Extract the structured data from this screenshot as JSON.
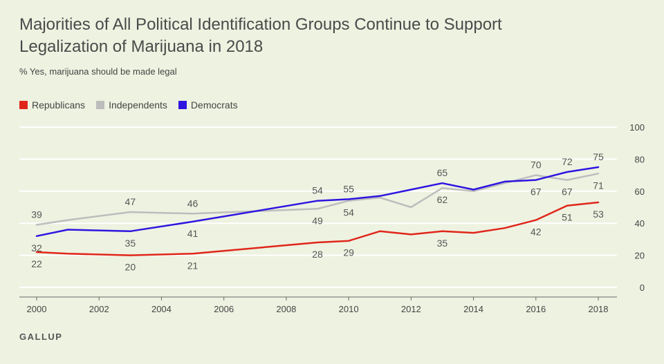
{
  "header": {
    "title": "Majorities of All Political Identification Groups Continue to Support Legalization of Marijuana in 2018",
    "subtitle": "% Yes, marijuana should be made legal"
  },
  "footer": {
    "brand": "GALLUP"
  },
  "colors": {
    "Republicans": "#e0261a",
    "Independents": "#bdbdbd",
    "Democrats": "#2e15e0"
  },
  "chart_data": {
    "type": "line",
    "title": "Majorities of All Political Identification Groups Continue to Support Legalization of Marijuana in 2018",
    "subtitle": "% Yes, marijuana should be made legal",
    "xlabel": "",
    "ylabel": "",
    "xlim": [
      2000,
      2018
    ],
    "ylim": [
      0,
      100
    ],
    "x_ticks": [
      2000,
      2002,
      2004,
      2006,
      2008,
      2010,
      2012,
      2014,
      2016,
      2018
    ],
    "y_ticks": [
      0,
      20,
      40,
      60,
      80,
      100
    ],
    "grid": true,
    "legend": "top-left",
    "x": [
      2000,
      2001,
      2003,
      2005,
      2009,
      2010,
      2011,
      2012,
      2013,
      2014,
      2015,
      2016,
      2017,
      2018
    ],
    "series": [
      {
        "name": "Republicans",
        "values": [
          22,
          21,
          20,
          21,
          28,
          29,
          35,
          33,
          35,
          34,
          37,
          42,
          51,
          53
        ]
      },
      {
        "name": "Independents",
        "values": [
          39,
          42,
          47,
          46,
          49,
          54,
          56,
          50,
          62,
          60,
          65,
          70,
          67,
          71
        ]
      },
      {
        "name": "Democrats",
        "values": [
          32,
          36,
          35,
          41,
          54,
          55,
          57,
          61,
          65,
          61,
          66,
          67,
          72,
          75
        ]
      }
    ],
    "data_labels": [
      {
        "x": 2000,
        "value": 39,
        "text": "39",
        "pos": "above"
      },
      {
        "x": 2000,
        "value": 32,
        "text": "32",
        "pos": "below"
      },
      {
        "x": 2000,
        "value": 22,
        "text": "22",
        "pos": "below"
      },
      {
        "x": 2003,
        "value": 47,
        "text": "47",
        "pos": "above"
      },
      {
        "x": 2003,
        "value": 35,
        "text": "35",
        "pos": "below"
      },
      {
        "x": 2003,
        "value": 20,
        "text": "20",
        "pos": "below"
      },
      {
        "x": 2005,
        "value": 46,
        "text": "46",
        "pos": "above"
      },
      {
        "x": 2005,
        "value": 41,
        "text": "41",
        "pos": "below"
      },
      {
        "x": 2005,
        "value": 21,
        "text": "21",
        "pos": "below"
      },
      {
        "x": 2009,
        "value": 54,
        "text": "54",
        "pos": "above"
      },
      {
        "x": 2009,
        "value": 49,
        "text": "49",
        "pos": "below"
      },
      {
        "x": 2009,
        "value": 28,
        "text": "28",
        "pos": "below"
      },
      {
        "x": 2010,
        "value": 55,
        "text": "55",
        "pos": "above"
      },
      {
        "x": 2010,
        "value": 54,
        "text": "54",
        "pos": "below"
      },
      {
        "x": 2010,
        "value": 29,
        "text": "29",
        "pos": "below"
      },
      {
        "x": 2013,
        "value": 65,
        "text": "65",
        "pos": "above"
      },
      {
        "x": 2013,
        "value": 62,
        "text": "62",
        "pos": "below"
      },
      {
        "x": 2013,
        "value": 35,
        "text": "35",
        "pos": "below"
      },
      {
        "x": 2016,
        "value": 70,
        "text": "70",
        "pos": "above"
      },
      {
        "x": 2016,
        "value": 67,
        "text": "67",
        "pos": "below"
      },
      {
        "x": 2016,
        "value": 42,
        "text": "42",
        "pos": "below"
      },
      {
        "x": 2017,
        "value": 72,
        "text": "72",
        "pos": "above"
      },
      {
        "x": 2017,
        "value": 67,
        "text": "67",
        "pos": "below"
      },
      {
        "x": 2017,
        "value": 51,
        "text": "51",
        "pos": "below"
      },
      {
        "x": 2018,
        "value": 75,
        "text": "75",
        "pos": "above"
      },
      {
        "x": 2018,
        "value": 71,
        "text": "71",
        "pos": "below"
      },
      {
        "x": 2018,
        "value": 53,
        "text": "53",
        "pos": "below"
      }
    ]
  }
}
